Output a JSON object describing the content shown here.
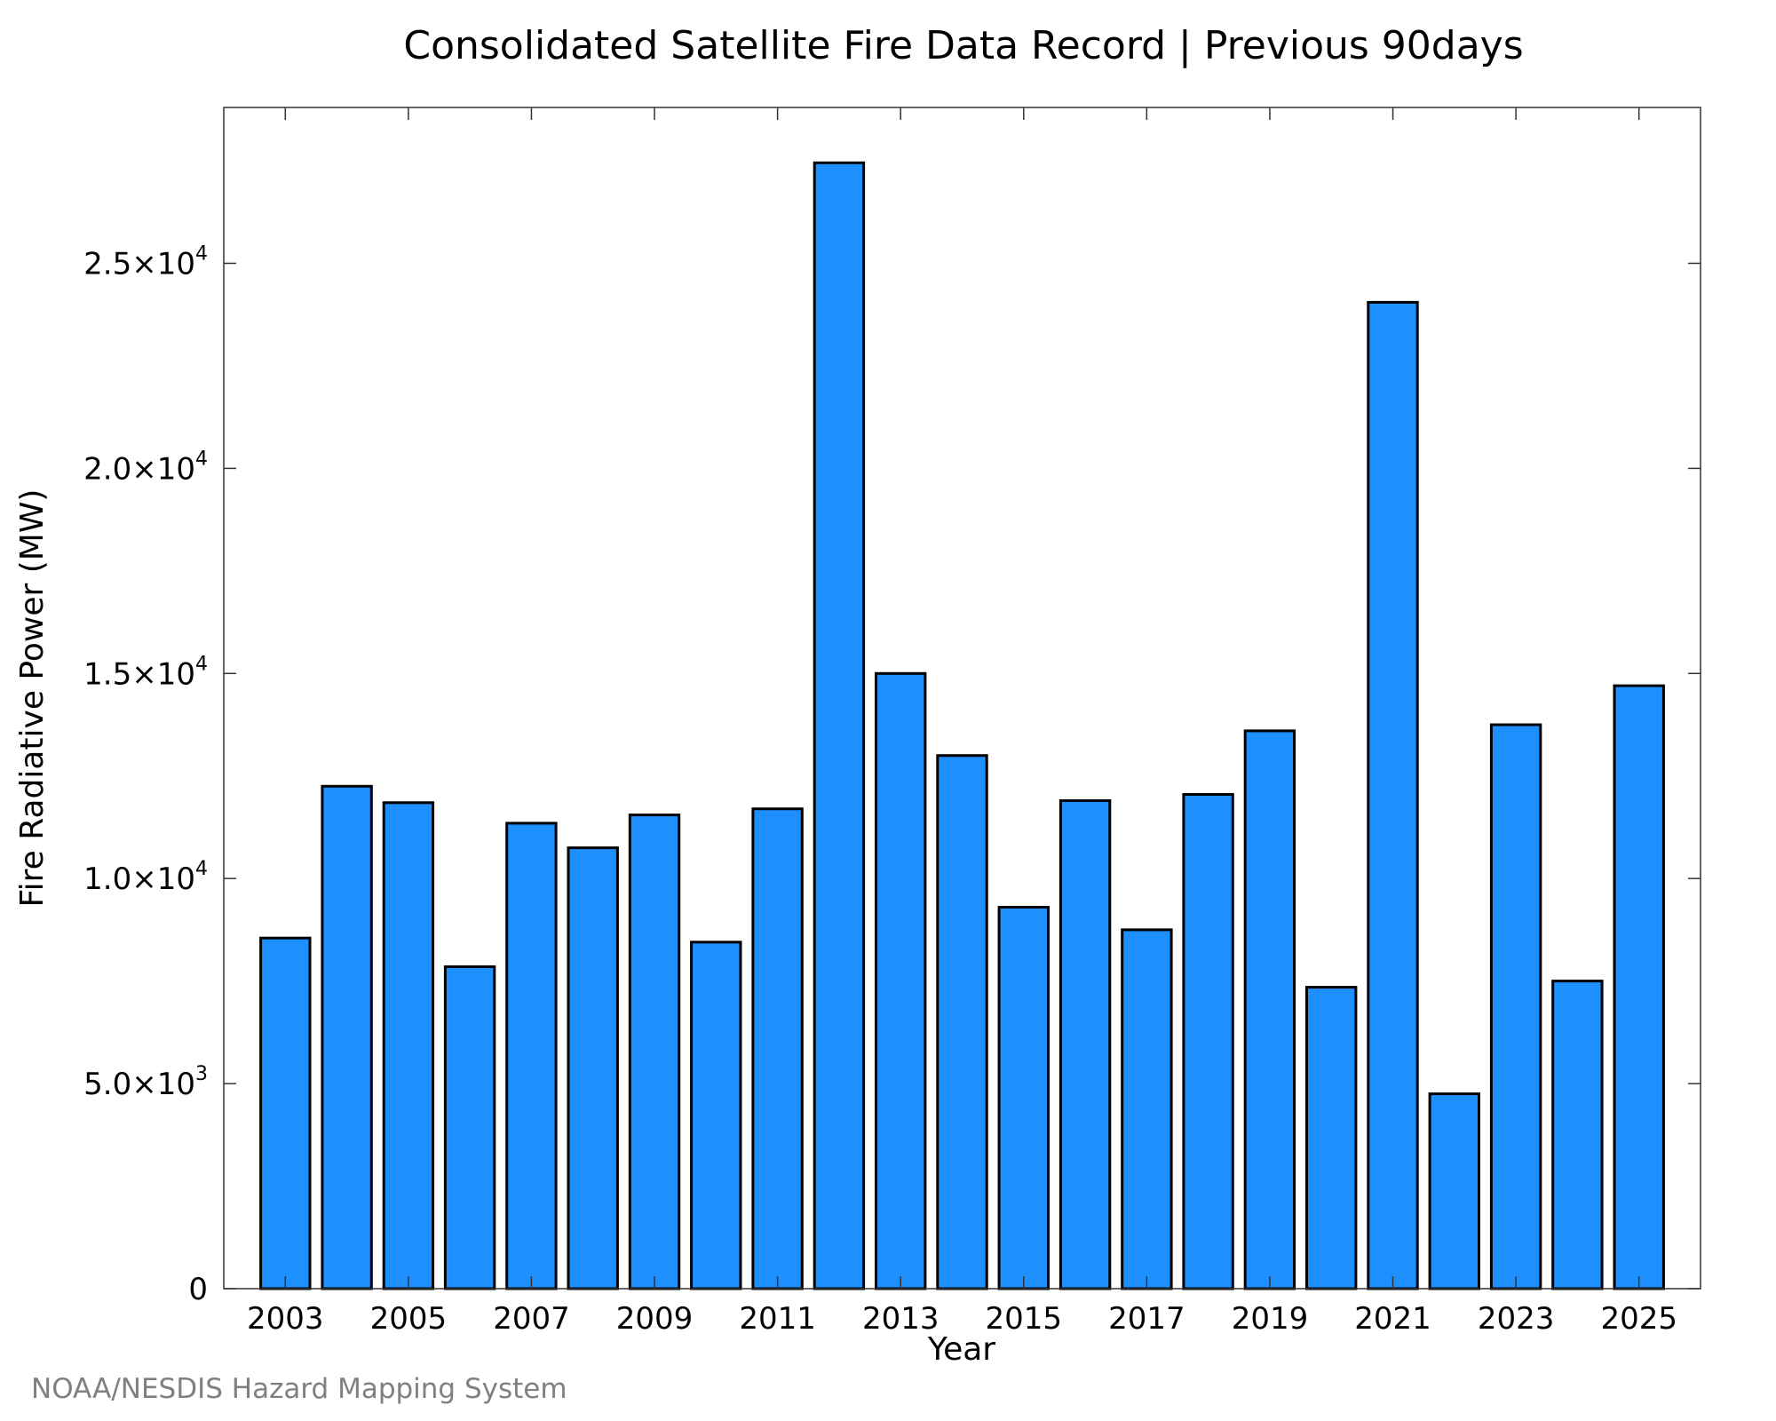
{
  "chart_data": {
    "type": "bar",
    "title": "Consolidated Satellite Fire Data Record | Previous 90days",
    "xlabel": "Year",
    "ylabel": "Fire Radiative Power (MW)",
    "categories": [
      "2003",
      "2004",
      "2005",
      "2006",
      "2007",
      "2008",
      "2009",
      "2010",
      "2011",
      "2012",
      "2013",
      "2014",
      "2015",
      "2016",
      "2017",
      "2018",
      "2019",
      "2020",
      "2021",
      "2022",
      "2023",
      "2024",
      "2025"
    ],
    "values": [
      8550,
      12250,
      11850,
      7850,
      11350,
      10750,
      11550,
      8450,
      11700,
      27450,
      15000,
      13000,
      9300,
      11900,
      8750,
      12050,
      13600,
      7350,
      24050,
      4750,
      13750,
      7500,
      14700
    ],
    "x_tick_labels": [
      "2003",
      "2005",
      "2007",
      "2009",
      "2011",
      "2013",
      "2015",
      "2017",
      "2019",
      "2021",
      "2023",
      "2025"
    ],
    "y_ticks": [
      {
        "value": 0,
        "mantissa": "0",
        "exp": ""
      },
      {
        "value": 5000,
        "mantissa": "5.0×10",
        "exp": "3"
      },
      {
        "value": 10000,
        "mantissa": "1.0×10",
        "exp": "4"
      },
      {
        "value": 15000,
        "mantissa": "1.5×10",
        "exp": "4"
      },
      {
        "value": 20000,
        "mantissa": "2.0×10",
        "exp": "4"
      },
      {
        "value": 25000,
        "mantissa": "2.5×10",
        "exp": "4"
      }
    ],
    "ylim": [
      0,
      28800
    ],
    "xlim": [
      2002.0,
      2026.0
    ],
    "grid": false,
    "bar_color": "#1e8fff",
    "edge_color": "#000000"
  },
  "footer": {
    "credit": "NOAA/NESDIS Hazard Mapping System"
  }
}
